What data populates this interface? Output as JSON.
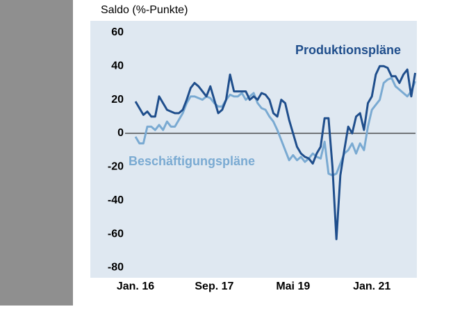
{
  "chart_data": {
    "type": "line",
    "title": "Saldo (%-Punkte)",
    "categories": [
      "Jan. 16",
      null,
      null,
      null,
      null,
      null,
      null,
      null,
      null,
      null,
      null,
      null,
      null,
      null,
      null,
      null,
      null,
      null,
      null,
      null,
      "Sep. 17",
      null,
      null,
      null,
      null,
      null,
      null,
      null,
      null,
      null,
      null,
      null,
      null,
      null,
      null,
      null,
      null,
      null,
      null,
      null,
      "Mai 19",
      null,
      null,
      null,
      null,
      null,
      null,
      null,
      null,
      null,
      null,
      null,
      null,
      null,
      null,
      null,
      null,
      null,
      null,
      null,
      "Jan. 21",
      null,
      null,
      null,
      null,
      null,
      null,
      null,
      null,
      null,
      null,
      null
    ],
    "series": [
      {
        "name": "Produktionspläne",
        "color": "#1f4e8c",
        "values": [
          19,
          15,
          11,
          13,
          10,
          10,
          22,
          18,
          14,
          13,
          12,
          12,
          14,
          20,
          27,
          30,
          28,
          25,
          22,
          28,
          20,
          12,
          14,
          20,
          35,
          25,
          25,
          25,
          25,
          20,
          22,
          20,
          24,
          23,
          20,
          12,
          10,
          20,
          18,
          8,
          0,
          -8,
          -12,
          -14,
          -15,
          -18,
          -12,
          -8,
          9,
          9,
          -20,
          -63,
          -25,
          -10,
          4,
          0,
          10,
          12,
          2,
          18,
          22,
          35,
          40,
          40,
          39,
          34,
          34,
          30,
          35,
          38,
          22,
          36
        ]
      },
      {
        "name": "Beschäftigungspläne",
        "color": "#7aaad2",
        "values": [
          -2,
          -6,
          -6,
          4,
          4,
          2,
          5,
          2,
          7,
          4,
          4,
          8,
          12,
          18,
          22,
          22,
          21,
          20,
          22,
          21,
          18,
          16,
          16,
          20,
          23,
          22,
          22,
          24,
          20,
          22,
          24,
          18,
          15,
          14,
          10,
          7,
          2,
          -4,
          -10,
          -16,
          -13,
          -16,
          -14,
          -17,
          -15,
          -12,
          -14,
          -15,
          -5,
          -24,
          -25,
          -24,
          -18,
          -12,
          -10,
          -6,
          -12,
          -6,
          -10,
          4,
          14,
          17,
          20,
          30,
          32,
          33,
          28,
          26,
          24,
          22,
          25,
          31
        ]
      }
    ],
    "ylim": [
      -86,
      67
    ],
    "yticks": [
      -80,
      -60,
      -40,
      -20,
      0,
      20,
      40,
      60
    ],
    "zero_line": true
  }
}
